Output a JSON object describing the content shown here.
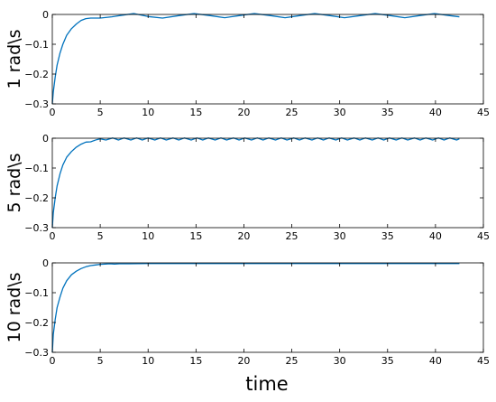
{
  "x_axis_label": "time",
  "series_color": "#0072bd",
  "chart_data": [
    {
      "type": "line",
      "ylabel": "1 rad\\s",
      "xlim": [
        0,
        45
      ],
      "ylim": [
        -0.3,
        0
      ],
      "xticks": [
        0,
        5,
        10,
        15,
        20,
        25,
        30,
        35,
        40,
        45
      ],
      "yticks": [
        -0.3,
        -0.2,
        -0.1,
        0
      ],
      "xtick_labels": [
        "0",
        "5",
        "10",
        "15",
        "20",
        "25",
        "30",
        "35",
        "40",
        "45"
      ],
      "ytick_labels": [
        "−0.3",
        "−0.2",
        "−0.1",
        "0"
      ],
      "x": [
        0,
        0.1,
        0.3,
        0.5,
        0.8,
        1.1,
        1.5,
        2.0,
        2.5,
        3.0,
        3.5,
        4.0,
        5.0,
        6.2,
        7.4,
        8.5,
        10.0,
        11.5,
        13.2,
        14.8,
        16.5,
        18.0,
        19.5,
        21.1,
        22.8,
        24.3,
        25.8,
        27.4,
        29.0,
        30.5,
        32.1,
        33.7,
        35.3,
        36.8,
        38.3,
        39.9,
        41.5,
        42.5
      ],
      "y": [
        -0.3,
        -0.26,
        -0.21,
        -0.17,
        -0.13,
        -0.1,
        -0.07,
        -0.048,
        -0.032,
        -0.02,
        -0.014,
        -0.012,
        -0.012,
        -0.008,
        -0.002,
        0.003,
        -0.007,
        -0.012,
        -0.004,
        0.003,
        -0.004,
        -0.011,
        -0.004,
        0.003,
        -0.004,
        -0.011,
        -0.004,
        0.003,
        -0.004,
        -0.011,
        -0.004,
        0.003,
        -0.004,
        -0.011,
        -0.004,
        0.003,
        -0.004,
        -0.008
      ]
    },
    {
      "type": "line",
      "ylabel": "5 rad\\s",
      "xlim": [
        0,
        45
      ],
      "ylim": [
        -0.3,
        0
      ],
      "xticks": [
        0,
        5,
        10,
        15,
        20,
        25,
        30,
        35,
        40,
        45
      ],
      "yticks": [
        -0.3,
        -0.2,
        -0.1,
        0
      ],
      "xtick_labels": [
        "0",
        "5",
        "10",
        "15",
        "20",
        "25",
        "30",
        "35",
        "40",
        "45"
      ],
      "ytick_labels": [
        "−0.3",
        "−0.2",
        "−0.1",
        "0"
      ],
      "x": [
        0,
        0.1,
        0.3,
        0.5,
        0.8,
        1.1,
        1.5,
        2.0,
        2.5,
        3.0,
        3.5,
        4.0,
        4.6,
        5.0,
        5.6,
        6.3,
        6.9,
        7.5,
        8.2,
        8.8,
        9.4,
        10.0,
        10.7,
        11.3,
        11.9,
        12.6,
        13.2,
        13.8,
        14.5,
        15.1,
        15.7,
        16.3,
        17.0,
        17.6,
        18.2,
        18.9,
        19.5,
        20.1,
        20.8,
        21.4,
        22.0,
        22.6,
        23.3,
        23.9,
        24.5,
        25.2,
        25.8,
        26.4,
        27.1,
        27.7,
        28.3,
        28.9,
        29.6,
        30.2,
        30.8,
        31.5,
        32.1,
        32.7,
        33.4,
        34.0,
        34.6,
        35.2,
        35.9,
        36.5,
        37.1,
        37.8,
        38.4,
        39.0,
        39.7,
        40.3,
        40.9,
        41.5,
        42.2,
        42.5
      ],
      "y": [
        -0.3,
        -0.25,
        -0.2,
        -0.16,
        -0.12,
        -0.09,
        -0.064,
        -0.045,
        -0.03,
        -0.02,
        -0.013,
        -0.012,
        -0.005,
        -0.002,
        -0.006,
        0.001,
        -0.006,
        0.001,
        -0.006,
        0.001,
        -0.006,
        0.001,
        -0.006,
        0.001,
        -0.006,
        0.001,
        -0.006,
        0.001,
        -0.006,
        0.001,
        -0.006,
        0.001,
        -0.006,
        0.001,
        -0.006,
        0.001,
        -0.006,
        0.001,
        -0.006,
        0.001,
        -0.006,
        0.001,
        -0.006,
        0.001,
        -0.006,
        0.001,
        -0.006,
        0.001,
        -0.006,
        0.001,
        -0.006,
        0.001,
        -0.006,
        0.001,
        -0.006,
        0.001,
        -0.006,
        0.001,
        -0.006,
        0.001,
        -0.006,
        0.001,
        -0.006,
        0.001,
        -0.006,
        0.001,
        -0.006,
        0.001,
        -0.006,
        0.001,
        -0.006,
        0.001,
        -0.006,
        -0.002
      ]
    },
    {
      "type": "line",
      "ylabel": "10 rad\\s",
      "xlim": [
        0,
        45
      ],
      "ylim": [
        -0.3,
        0
      ],
      "xticks": [
        0,
        5,
        10,
        15,
        20,
        25,
        30,
        35,
        40,
        45
      ],
      "yticks": [
        -0.3,
        -0.2,
        -0.1,
        0
      ],
      "xtick_labels": [
        "0",
        "5",
        "10",
        "15",
        "20",
        "25",
        "30",
        "35",
        "40",
        "45"
      ],
      "ytick_labels": [
        "−0.3",
        "−0.2",
        "−0.1",
        "0"
      ],
      "x": [
        0,
        0.1,
        0.3,
        0.5,
        0.8,
        1.1,
        1.5,
        2.0,
        2.5,
        3.0,
        3.5,
        4.0,
        4.5,
        5.0,
        5.5,
        6.0,
        6.5,
        7.0,
        8.0,
        10.0,
        15.0,
        20.0,
        25.0,
        30.0,
        35.0,
        40.0,
        42.5
      ],
      "y": [
        -0.3,
        -0.24,
        -0.19,
        -0.15,
        -0.115,
        -0.085,
        -0.06,
        -0.04,
        -0.028,
        -0.019,
        -0.013,
        -0.009,
        -0.007,
        -0.005,
        -0.004,
        -0.003,
        -0.004,
        -0.003,
        -0.003,
        -0.002,
        -0.002,
        -0.002,
        -0.002,
        -0.002,
        -0.002,
        -0.002,
        -0.002
      ]
    }
  ]
}
